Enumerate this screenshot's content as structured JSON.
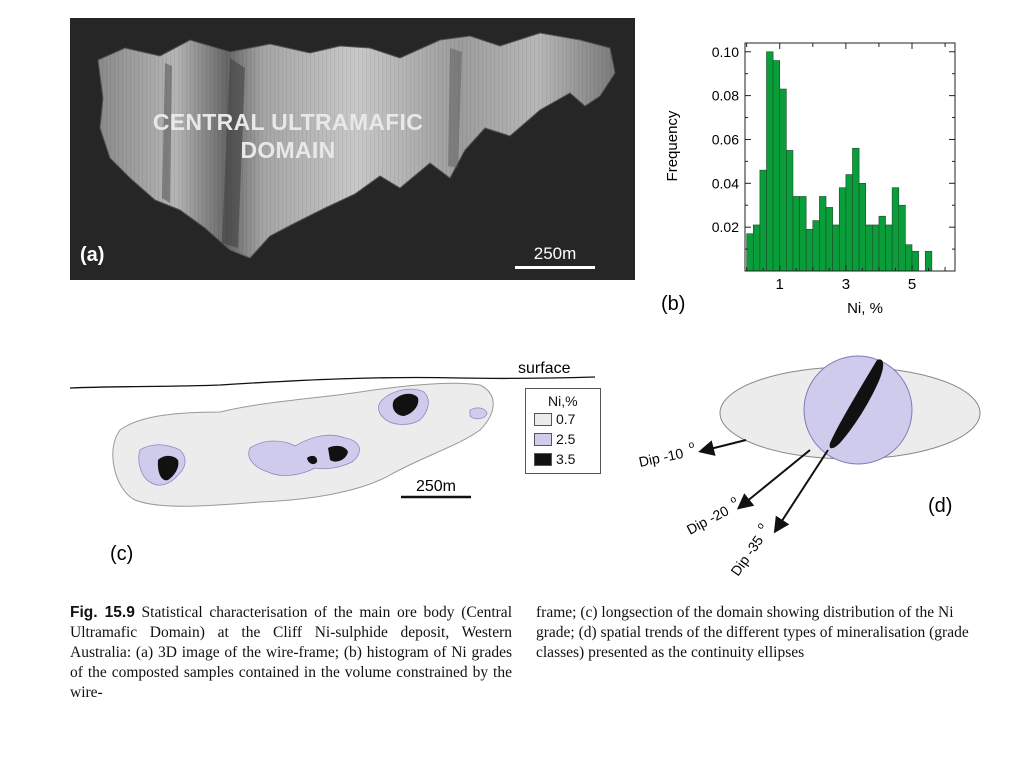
{
  "panel_a": {
    "title_line1": "CENTRAL ULTRAMAFIC",
    "title_line2": "DOMAIN",
    "label": "(a)",
    "scale": "250m"
  },
  "panel_b": {
    "label": "(b)"
  },
  "panel_c": {
    "label": "(c)",
    "surface_label": "surface",
    "scale": "250m",
    "legend": {
      "title": "Ni,%",
      "items": [
        {
          "label": "0.7",
          "color": "#ececec"
        },
        {
          "label": "2.5",
          "color": "#cfcbec"
        },
        {
          "label": "3.5",
          "color": "#111111"
        }
      ]
    }
  },
  "panel_d": {
    "label": "(d)",
    "dips": [
      "Dip -10",
      "Dip -20",
      "Dip -35"
    ],
    "degree_symbol": "o"
  },
  "chart_data": {
    "type": "bar",
    "title": "",
    "xlabel": "Ni, %",
    "ylabel": "Frequency",
    "xlim": [
      -0.05,
      6.3
    ],
    "ylim": [
      0,
      0.104
    ],
    "x_ticks": [
      1,
      3,
      5
    ],
    "y_ticks": [
      0.02,
      0.04,
      0.06,
      0.08,
      0.1
    ],
    "y_tick_labels": [
      "0.02",
      "0.04",
      "0.06",
      "0.08",
      "0.10"
    ],
    "bin_width": 0.2,
    "bin_start": 0.0,
    "values": [
      0.017,
      0.021,
      0.046,
      0.1,
      0.096,
      0.083,
      0.055,
      0.034,
      0.034,
      0.019,
      0.023,
      0.034,
      0.029,
      0.021,
      0.038,
      0.044,
      0.056,
      0.04,
      0.021,
      0.021,
      0.025,
      0.021,
      0.038,
      0.03,
      0.012,
      0.009,
      0.0,
      0.009
    ],
    "color": "#0a9e3a"
  },
  "caption": {
    "fig_number": "Fig. 15.9",
    "left_text": "Statistical characterisation of the main ore body (Central Ultramafic Domain) at the Cliff Ni-sulphide deposit, Western Australia: (a) 3D image of the wire-frame; (b) histogram of Ni grades of the composted samples contained in the volume constrained by the wire-",
    "right_text": "frame; (c) longsection of the domain showing distribution of the Ni grade; (d) spatial trends of the different types of mineralisation (grade classes) presented as the continuity ellipses"
  }
}
